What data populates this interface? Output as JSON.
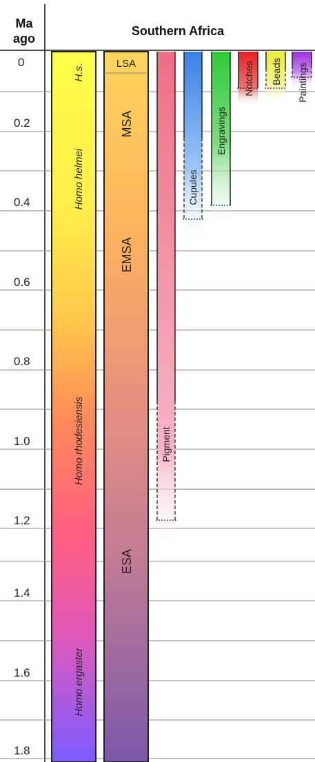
{
  "header": {
    "axis_title_line1": "Ma",
    "axis_title_line2": "ago",
    "region_title": "Southern Africa"
  },
  "axis": {
    "ticks": [
      "0",
      "0.2",
      "0.4",
      "0.6",
      "0.8",
      "1.0",
      "1.2",
      "1.4",
      "1.6",
      "1.8"
    ]
  },
  "species": [
    {
      "name": "H.s."
    },
    {
      "name": "Homo helmei"
    },
    {
      "name": "Homo rhodesiensis"
    },
    {
      "name": "Homo ergaster"
    }
  ],
  "industries": [
    {
      "name": "LSA"
    },
    {
      "name": "MSA"
    },
    {
      "name": "EMSA"
    },
    {
      "name": "ESA"
    }
  ],
  "artifacts": [
    {
      "name": "Pigment",
      "color": "#ee6f84"
    },
    {
      "name": "Cupules",
      "color": "#3a82e8"
    },
    {
      "name": "Engravings",
      "color": "#2ecc3a"
    },
    {
      "name": "Notches",
      "color": "#e82020"
    },
    {
      "name": "Beads",
      "color": "#ecec33"
    },
    {
      "name": "Paintings",
      "color": "#9b2ee0"
    }
  ],
  "colors": {
    "species_gradient": [
      "#ffff4a",
      "#ffcf48",
      "#ff7f5e",
      "#ff5f80",
      "#e65ab4",
      "#7a5cff"
    ],
    "industry_gradient": [
      "#ffd45a",
      "#f6a45e",
      "#d98a8f",
      "#8a60b0",
      "#7a5a9e"
    ]
  }
}
